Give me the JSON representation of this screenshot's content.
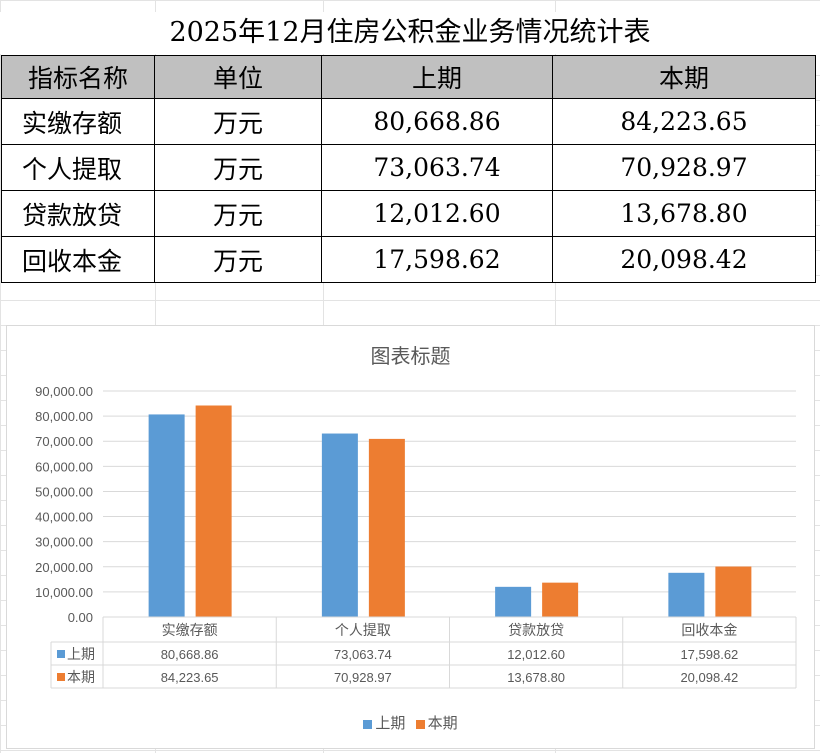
{
  "title": "2025年12月住房公积金业务情况统计表",
  "table": {
    "headers": [
      "指标名称",
      "单位",
      "上期",
      "本期"
    ],
    "rows": [
      [
        "实缴存额",
        "万元",
        "80,668.86",
        "84,223.65"
      ],
      [
        "个人提取",
        "万元",
        "73,063.74",
        "70,928.97"
      ],
      [
        "贷款放贷",
        "万元",
        "12,012.60",
        "13,678.80"
      ],
      [
        "回收本金",
        "万元",
        "17,598.62",
        "20,098.42"
      ]
    ]
  },
  "chart_data": {
    "type": "bar",
    "title": "图表标题",
    "categories": [
      "实缴存额",
      "个人提取",
      "贷款放贷",
      "回收本金"
    ],
    "series": [
      {
        "name": "上期",
        "color": "#5b9bd5",
        "values": [
          80668.86,
          73063.74,
          12012.6,
          17598.62
        ],
        "labels": [
          "80,668.86",
          "73,063.74",
          "12,012.60",
          "17,598.62"
        ]
      },
      {
        "name": "本期",
        "color": "#ed7d31",
        "values": [
          84223.65,
          70928.97,
          13678.8,
          20098.42
        ],
        "labels": [
          "84,223.65",
          "70,928.97",
          "13,678.80",
          "20,098.42"
        ]
      }
    ],
    "ylim": [
      0,
      90000
    ],
    "yticks": [
      "0.00",
      "10,000.00",
      "20,000.00",
      "30,000.00",
      "40,000.00",
      "50,000.00",
      "60,000.00",
      "70,000.00",
      "80,000.00",
      "90,000.00"
    ],
    "grid": true,
    "data_table": true,
    "legend": "bottom"
  }
}
